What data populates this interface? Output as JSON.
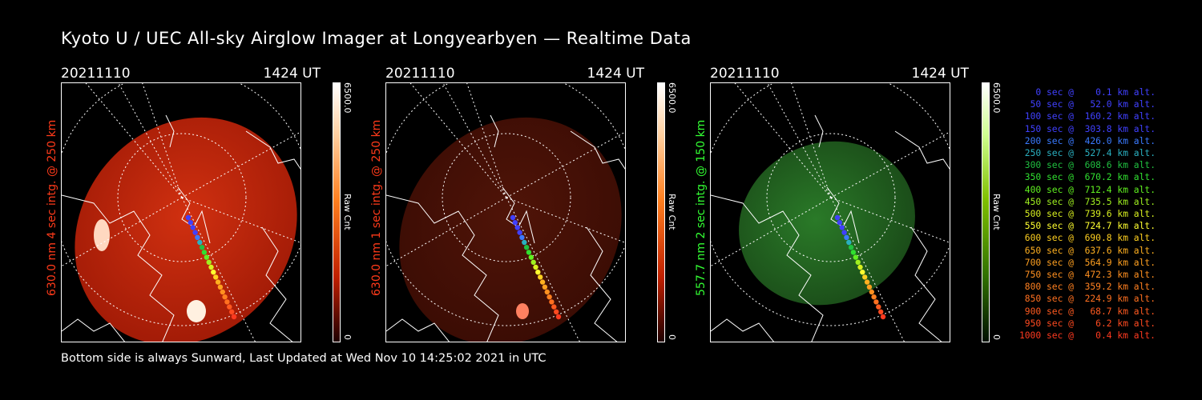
{
  "title": "Kyoto U / UEC All-sky Airglow Imager at Longyearbyen — Realtime Data",
  "footer": "Bottom side is always Sunward, Last Updated at Wed Nov 10 14:25:02 2021 in UTC",
  "panels": [
    {
      "date": "20211110",
      "time": "1424 UT",
      "wavelength_label": "630.0 nm  4 sec intg. @ 250 km",
      "label_color": "#ff3a1a",
      "cbar_max": "6500.0",
      "cbar_label": "Raw Cnt",
      "cbar_min": "0",
      "tint": "red-bright"
    },
    {
      "date": "20211110",
      "time": "1424 UT",
      "wavelength_label": "630.0 nm  1 sec intg. @ 250 km",
      "label_color": "#ff3a1a",
      "cbar_max": "6500.0",
      "cbar_label": "Raw Cnt",
      "cbar_min": "0",
      "tint": "red-dim"
    },
    {
      "date": "20211110",
      "time": "1424 UT",
      "wavelength_label": "557.7 nm  2 sec intg. @ 150 km",
      "label_color": "#33ff33",
      "cbar_max": "6500.0",
      "cbar_label": "Raw Cnt",
      "cbar_min": "0",
      "tint": "green"
    }
  ],
  "legend": [
    {
      "text": "  0 sec @    0.1 km alt.",
      "color": "#4040ff"
    },
    {
      "text": " 50 sec @   52.0 km alt.",
      "color": "#4040ff"
    },
    {
      "text": "100 sec @  160.2 km alt.",
      "color": "#4040ff"
    },
    {
      "text": "150 sec @  303.8 km alt.",
      "color": "#4040ff"
    },
    {
      "text": "200 sec @  426.0 km alt.",
      "color": "#3a7aff"
    },
    {
      "text": "250 sec @  527.4 km alt.",
      "color": "#2ab0c0"
    },
    {
      "text": "300 sec @  608.6 km alt.",
      "color": "#20c040"
    },
    {
      "text": "350 sec @  670.2 km alt.",
      "color": "#30e030"
    },
    {
      "text": "400 sec @  712.4 km alt.",
      "color": "#60f020"
    },
    {
      "text": "450 sec @  735.5 km alt.",
      "color": "#a0f020"
    },
    {
      "text": "500 sec @  739.6 km alt.",
      "color": "#d8f020"
    },
    {
      "text": "550 sec @  724.7 km alt.",
      "color": "#ffff30"
    },
    {
      "text": "600 sec @  690.8 km alt.",
      "color": "#ffd020"
    },
    {
      "text": "650 sec @  637.6 km alt.",
      "color": "#ffb020"
    },
    {
      "text": "700 sec @  564.9 km alt.",
      "color": "#ffa020"
    },
    {
      "text": "750 sec @  472.3 km alt.",
      "color": "#ff9020"
    },
    {
      "text": "800 sec @  359.2 km alt.",
      "color": "#ff8020"
    },
    {
      "text": "850 sec @  224.9 km alt.",
      "color": "#ff7020"
    },
    {
      "text": "900 sec @   68.7 km alt.",
      "color": "#ff5a20"
    },
    {
      "text": "950 sec @    6.2 km alt.",
      "color": "#ff4a20"
    },
    {
      "text": "1000 sec @    0.4 km alt.",
      "color": "#ff3a20"
    }
  ]
}
